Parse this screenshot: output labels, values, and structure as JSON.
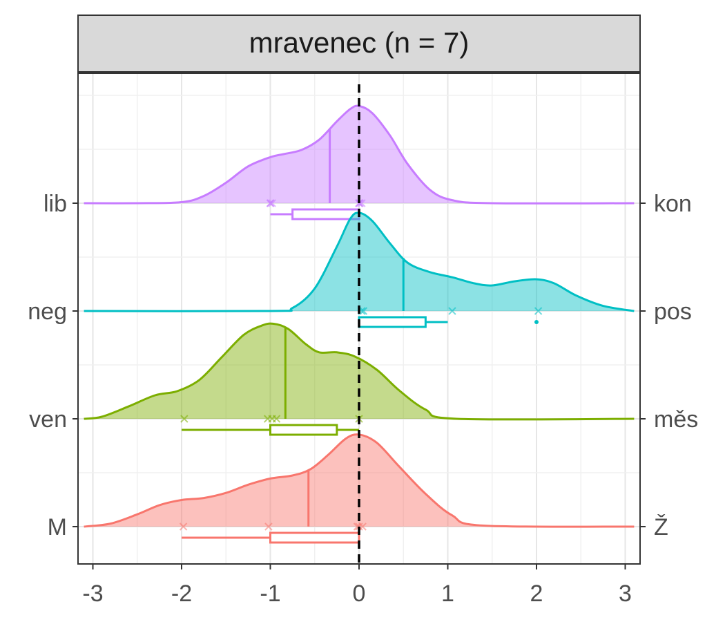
{
  "chart_data": {
    "type": "ridgeline-density-boxplot",
    "panel_title": "mravenec (n = 7)",
    "x_ticks": [
      -3,
      -2,
      -1,
      0,
      1,
      2,
      3
    ],
    "xlim": [
      -3.1,
      3.1
    ],
    "reference_line_x": 0,
    "grid": true,
    "rows": [
      {
        "left_label": "lib",
        "right_label": "kon",
        "color": "#C77CFF",
        "median": -0.33,
        "points": [
          -1.0,
          -1.0,
          -0.98,
          0.0,
          0.0,
          0.01,
          0.03
        ],
        "box": {
          "q1": -0.75,
          "median": 0.0,
          "q3": 0.0,
          "whisker_low": -1.0,
          "whisker_high": 0.0
        },
        "density": [
          [
            -3.1,
            0.0
          ],
          [
            -2.5,
            0.0
          ],
          [
            -2.0,
            0.01
          ],
          [
            -1.75,
            0.07
          ],
          [
            -1.5,
            0.2
          ],
          [
            -1.25,
            0.36
          ],
          [
            -1.0,
            0.45
          ],
          [
            -0.85,
            0.48
          ],
          [
            -0.65,
            0.52
          ],
          [
            -0.45,
            0.62
          ],
          [
            -0.25,
            0.8
          ],
          [
            -0.1,
            0.92
          ],
          [
            0.0,
            0.95
          ],
          [
            0.15,
            0.88
          ],
          [
            0.35,
            0.66
          ],
          [
            0.55,
            0.38
          ],
          [
            0.8,
            0.13
          ],
          [
            1.05,
            0.03
          ],
          [
            1.5,
            0.0
          ],
          [
            3.1,
            0.0
          ]
        ]
      },
      {
        "left_label": "neg",
        "right_label": "pos",
        "color": "#00BFC4",
        "median": 0.5,
        "points": [
          0.03,
          0.05,
          1.05,
          2.02
        ],
        "outliers": [
          2.0
        ],
        "box": {
          "q1": 0.0,
          "median": 0.0,
          "q3": 0.75,
          "whisker_low": 0.0,
          "whisker_high": 1.0
        },
        "density": [
          [
            -3.1,
            0.0
          ],
          [
            -1.0,
            0.0
          ],
          [
            -0.75,
            0.03
          ],
          [
            -0.5,
            0.22
          ],
          [
            -0.25,
            0.63
          ],
          [
            -0.1,
            0.9
          ],
          [
            0.0,
            0.96
          ],
          [
            0.15,
            0.88
          ],
          [
            0.35,
            0.66
          ],
          [
            0.55,
            0.47
          ],
          [
            0.8,
            0.38
          ],
          [
            1.05,
            0.33
          ],
          [
            1.3,
            0.27
          ],
          [
            1.5,
            0.25
          ],
          [
            1.75,
            0.29
          ],
          [
            2.0,
            0.31
          ],
          [
            2.2,
            0.27
          ],
          [
            2.45,
            0.15
          ],
          [
            2.75,
            0.05
          ],
          [
            3.1,
            0.0
          ]
        ]
      },
      {
        "left_label": "ven",
        "right_label": "měs",
        "color": "#7CAE00",
        "median": -0.83,
        "points": [
          -1.97,
          -1.03,
          -0.98,
          -0.93,
          0.0
        ],
        "box": {
          "q1": -1.0,
          "median": -1.0,
          "q3": -0.25,
          "whisker_low": -2.0,
          "whisker_high": 0.0
        },
        "density": [
          [
            -3.1,
            0.0
          ],
          [
            -2.9,
            0.02
          ],
          [
            -2.6,
            0.12
          ],
          [
            -2.3,
            0.23
          ],
          [
            -2.05,
            0.27
          ],
          [
            -1.8,
            0.38
          ],
          [
            -1.55,
            0.6
          ],
          [
            -1.3,
            0.82
          ],
          [
            -1.1,
            0.91
          ],
          [
            -0.97,
            0.93
          ],
          [
            -0.8,
            0.88
          ],
          [
            -0.6,
            0.73
          ],
          [
            -0.45,
            0.65
          ],
          [
            -0.25,
            0.65
          ],
          [
            -0.05,
            0.61
          ],
          [
            0.2,
            0.48
          ],
          [
            0.45,
            0.28
          ],
          [
            0.75,
            0.09
          ],
          [
            1.1,
            0.0
          ],
          [
            3.1,
            0.0
          ]
        ]
      },
      {
        "left_label": "M",
        "right_label": "Ž",
        "color": "#F8766D",
        "median": -0.57,
        "points": [
          -1.98,
          -1.02,
          -0.02,
          0.0,
          0.04
        ],
        "box": {
          "q1": -1.0,
          "median": 0.0,
          "q3": 0.0,
          "whisker_low": -2.0,
          "whisker_high": 0.0
        },
        "density": [
          [
            -3.1,
            0.0
          ],
          [
            -2.8,
            0.03
          ],
          [
            -2.5,
            0.12
          ],
          [
            -2.25,
            0.21
          ],
          [
            -2.0,
            0.26
          ],
          [
            -1.75,
            0.28
          ],
          [
            -1.5,
            0.33
          ],
          [
            -1.25,
            0.41
          ],
          [
            -1.0,
            0.47
          ],
          [
            -0.75,
            0.5
          ],
          [
            -0.55,
            0.56
          ],
          [
            -0.35,
            0.7
          ],
          [
            -0.15,
            0.86
          ],
          [
            0.0,
            0.9
          ],
          [
            0.2,
            0.82
          ],
          [
            0.45,
            0.59
          ],
          [
            0.75,
            0.32
          ],
          [
            1.05,
            0.11
          ],
          [
            1.4,
            0.01
          ],
          [
            3.1,
            0.0
          ]
        ]
      }
    ]
  }
}
